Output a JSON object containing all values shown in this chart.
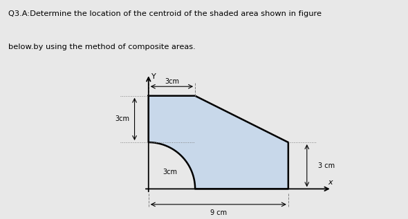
{
  "title_line1": "Q3.A:Determine the location of the centroid of the shaded area shown in figure",
  "title_line2": "below.by using the method of composite areas.",
  "bg_color": "#e8e8e8",
  "shape_fill": "#c8d8ea",
  "shape_edge": "#000000",
  "label_3cm_top": "3cm",
  "label_3cm_left": "3cm",
  "label_3cm_right": "3 cm",
  "label_3cm_arc": "3cm",
  "label_9cm": "9 cm"
}
